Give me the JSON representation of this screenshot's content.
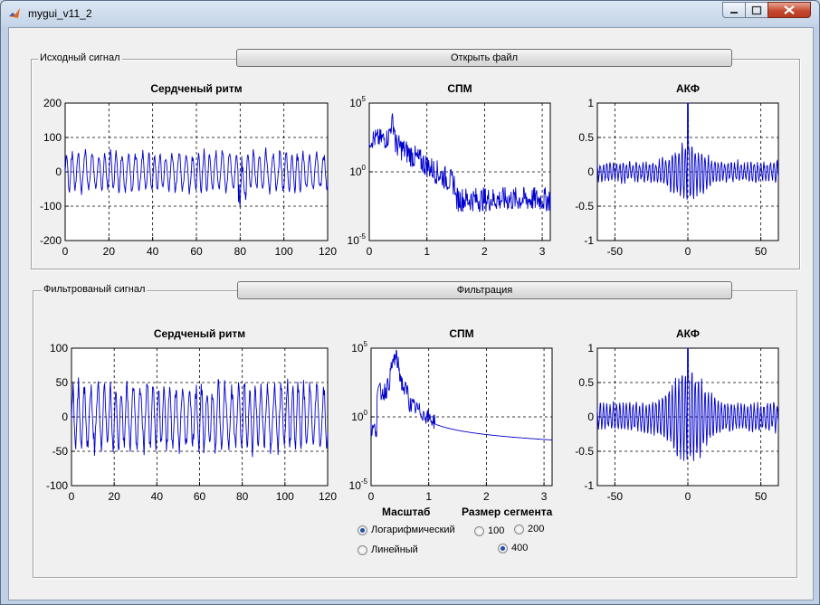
{
  "window": {
    "title": "mygui_v11_2"
  },
  "panels": {
    "original": {
      "title": "Исходный сигнал",
      "button": "Открыть файл"
    },
    "filtered": {
      "title": "Фильтрованый сигнал",
      "button": "Фильтрация"
    }
  },
  "controls": {
    "scale_label": "Масштаб",
    "scale_options": [
      "Логарифмический",
      "Линейный"
    ],
    "scale_selected": "Логарифмический",
    "segment_label": "Размер сегмента",
    "segment_options": [
      "100",
      "200",
      "400"
    ],
    "segment_selected": "400"
  },
  "colors": {
    "line": "#0000cc"
  },
  "chart_data": [
    {
      "id": "orig-hr",
      "type": "line",
      "title": "Сердченый ритм",
      "xlim": [
        0,
        120
      ],
      "ylim": [
        -200,
        200
      ],
      "xticks": [
        "0",
        "20",
        "40",
        "60",
        "80",
        "100",
        "120"
      ],
      "yticks": [
        "200",
        "100",
        "0",
        "-100",
        "-200"
      ],
      "grid": true,
      "series": [
        {
          "x": [
            0,
            120
          ],
          "y": [
            0,
            0
          ],
          "amplitude": 50,
          "note": "oscillating signal"
        }
      ]
    },
    {
      "id": "orig-psd",
      "type": "line",
      "title": "СПМ",
      "xlim": [
        0,
        3.14
      ],
      "yscale": "log",
      "ylim": [
        1e-05,
        100000.0
      ],
      "xticks": [
        "0",
        "1",
        "2",
        "3"
      ],
      "yticks": [
        "5",
        "0",
        "-5"
      ],
      "grid": true
    },
    {
      "id": "orig-acf",
      "type": "line",
      "title": "АКФ",
      "xlim": [
        -62,
        62
      ],
      "ylim": [
        -1,
        1
      ],
      "xticks": [
        "-50",
        "0",
        "50"
      ],
      "yticks": [
        "1",
        "0.5",
        "0",
        "-0.5",
        "-1"
      ],
      "grid": true
    },
    {
      "id": "filt-hr",
      "type": "line",
      "title": "Сердченый ритм",
      "xlim": [
        0,
        120
      ],
      "ylim": [
        -100,
        100
      ],
      "xticks": [
        "0",
        "20",
        "40",
        "60",
        "80",
        "100",
        "120"
      ],
      "yticks": [
        "100",
        "50",
        "0",
        "-50",
        "-100"
      ],
      "grid": true
    },
    {
      "id": "filt-psd",
      "type": "line",
      "title": "СПМ",
      "xlim": [
        0,
        3.14
      ],
      "yscale": "log",
      "ylim": [
        1e-05,
        100000.0
      ],
      "xticks": [
        "0",
        "1",
        "2",
        "3"
      ],
      "yticks": [
        "5",
        "0",
        "-5"
      ],
      "grid": true
    },
    {
      "id": "filt-acf",
      "type": "line",
      "title": "АКФ",
      "xlim": [
        -62,
        62
      ],
      "ylim": [
        -1,
        1
      ],
      "xticks": [
        "-50",
        "0",
        "50"
      ],
      "yticks": [
        "1",
        "0.5",
        "0",
        "-0.5",
        "-1"
      ],
      "grid": true
    }
  ]
}
